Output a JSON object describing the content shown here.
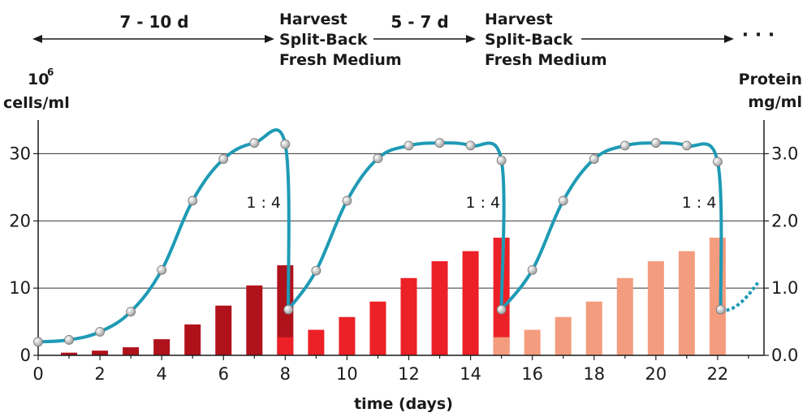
{
  "chart_data": {
    "type": "bar",
    "xlabel": "time (days)",
    "ylabel_left": [
      "10",
      "6",
      "cells/ml"
    ],
    "ylabel_right": [
      "Protein",
      "mg/ml"
    ],
    "xlim": [
      0,
      23.5
    ],
    "ylim_left": [
      0,
      35
    ],
    "ylim_right": [
      0,
      3.5
    ],
    "x_ticks": [
      "0",
      "2",
      "4",
      "6",
      "8",
      "10",
      "12",
      "14",
      "16",
      "18",
      "20",
      "22"
    ],
    "y_left_ticks": [
      "0",
      "10",
      "20",
      "30"
    ],
    "y_right_ticks": [
      "0.0",
      "1.0",
      "2.0",
      "3.0"
    ],
    "grid": "horizontal",
    "phases": [
      {
        "label": "7 - 10 d"
      },
      {
        "label": "Harvest\nSplit-Back\nFresh Medium"
      },
      {
        "label": "5 - 7 d"
      },
      {
        "label": "Harvest\nSplit-Back\nFresh Medium"
      },
      {
        "label": "· · ·"
      }
    ],
    "ratio_labels": [
      "1 : 4",
      "1 : 4",
      "1 : 4"
    ],
    "colors": {
      "cycle1": "#b0121c",
      "cycle2": "#ec2027",
      "cycle3": "#f49c7e",
      "curve": "#1e9ab5",
      "grid": "#333333"
    },
    "bars": [
      {
        "x": 1,
        "value": 0.04,
        "cycle": 1
      },
      {
        "x": 2,
        "value": 0.07,
        "cycle": 1
      },
      {
        "x": 3,
        "value": 0.12,
        "cycle": 1
      },
      {
        "x": 4,
        "value": 0.24,
        "cycle": 1
      },
      {
        "x": 5,
        "value": 0.46,
        "cycle": 1
      },
      {
        "x": 6,
        "value": 0.74,
        "cycle": 1
      },
      {
        "x": 7,
        "value": 1.04,
        "cycle": 1
      },
      {
        "x": 8,
        "value": 1.34,
        "cycle": 1,
        "base": 0.27,
        "base_cycle": 2
      },
      {
        "x": 9,
        "value": 0.38,
        "cycle": 2
      },
      {
        "x": 10,
        "value": 0.57,
        "cycle": 2
      },
      {
        "x": 11,
        "value": 0.8,
        "cycle": 2
      },
      {
        "x": 12,
        "value": 1.15,
        "cycle": 2
      },
      {
        "x": 13,
        "value": 1.4,
        "cycle": 2
      },
      {
        "x": 14,
        "value": 1.55,
        "cycle": 2
      },
      {
        "x": 15,
        "value": 1.75,
        "cycle": 2,
        "base": 0.27,
        "base_cycle": 3
      },
      {
        "x": 16,
        "value": 0.38,
        "cycle": 3
      },
      {
        "x": 17,
        "value": 0.57,
        "cycle": 3
      },
      {
        "x": 18,
        "value": 0.8,
        "cycle": 3
      },
      {
        "x": 19,
        "value": 1.15,
        "cycle": 3
      },
      {
        "x": 20,
        "value": 1.4,
        "cycle": 3
      },
      {
        "x": 21,
        "value": 1.55,
        "cycle": 3
      },
      {
        "x": 22,
        "value": 1.75,
        "cycle": 3
      }
    ],
    "cell_density_series": [
      [
        [
          0,
          2.0
        ],
        [
          1,
          2.3
        ],
        [
          2,
          3.5
        ],
        [
          3,
          6.5
        ],
        [
          4,
          12.7
        ],
        [
          5,
          23.0
        ],
        [
          6,
          29.2
        ],
        [
          7,
          31.6
        ],
        [
          8,
          31.4
        ],
        [
          8.1,
          6.8
        ]
      ],
      [
        [
          8.1,
          6.8
        ],
        [
          9,
          12.6
        ],
        [
          10,
          23.0
        ],
        [
          11,
          29.3
        ],
        [
          12,
          31.2
        ],
        [
          13,
          31.6
        ],
        [
          14,
          31.2
        ],
        [
          15,
          29.0
        ],
        [
          15,
          6.8
        ]
      ],
      [
        [
          15,
          6.8
        ],
        [
          16,
          12.7
        ],
        [
          17,
          23.0
        ],
        [
          18,
          29.2
        ],
        [
          19,
          31.2
        ],
        [
          20,
          31.6
        ],
        [
          21,
          31.2
        ],
        [
          22,
          28.8
        ],
        [
          22.1,
          6.8
        ]
      ]
    ],
    "cell_density_extension": [
      [
        22.1,
        6.8
      ],
      [
        23.3,
        10.8
      ]
    ]
  }
}
